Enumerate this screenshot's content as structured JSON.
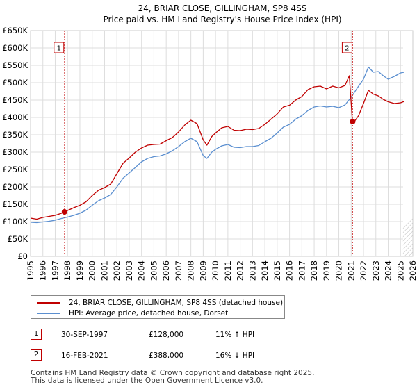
{
  "chart_data": {
    "type": "line",
    "title": "24, BRIAR CLOSE, GILLINGHAM, SP8 4SS",
    "subtitle": "Price paid vs. HM Land Registry's House Price Index (HPI)",
    "xlim": [
      1995,
      2026
    ],
    "ylim": [
      0,
      650000
    ],
    "x_ticks": [
      "1995",
      "1996",
      "1997",
      "1998",
      "1999",
      "2000",
      "2001",
      "2002",
      "2003",
      "2004",
      "2005",
      "2006",
      "2007",
      "2008",
      "2009",
      "2010",
      "2011",
      "2012",
      "2013",
      "2014",
      "2015",
      "2016",
      "2017",
      "2018",
      "2019",
      "2020",
      "2021",
      "2022",
      "2023",
      "2024",
      "2025",
      "2026"
    ],
    "y_ticks": [
      "£0",
      "£50K",
      "£100K",
      "£150K",
      "£200K",
      "£250K",
      "£300K",
      "£350K",
      "£400K",
      "£450K",
      "£500K",
      "£550K",
      "£600K",
      "£650K"
    ],
    "y_tick_values": [
      0,
      50000,
      100000,
      150000,
      200000,
      250000,
      300000,
      350000,
      400000,
      450000,
      500000,
      550000,
      600000,
      650000
    ],
    "series": [
      {
        "name": "24, BRIAR CLOSE, GILLINGHAM, SP8 4SS (detached house)",
        "color": "#c00000",
        "x": [
          1995.0,
          1995.5,
          1996.0,
          1996.5,
          1997.0,
          1997.5,
          1997.75,
          1998.0,
          1998.5,
          1999.0,
          1999.5,
          2000.0,
          2000.5,
          2001.0,
          2001.5,
          2002.0,
          2002.5,
          2003.0,
          2003.5,
          2004.0,
          2004.5,
          2005.0,
          2005.5,
          2006.0,
          2006.5,
          2007.0,
          2007.5,
          2008.0,
          2008.5,
          2009.0,
          2009.3,
          2009.7,
          2010.0,
          2010.5,
          2011.0,
          2011.5,
          2012.0,
          2012.5,
          2013.0,
          2013.5,
          2014.0,
          2014.5,
          2015.0,
          2015.5,
          2016.0,
          2016.5,
          2017.0,
          2017.5,
          2018.0,
          2018.5,
          2019.0,
          2019.5,
          2020.0,
          2020.5,
          2020.85,
          2021.08,
          2021.12,
          2021.3,
          2021.6,
          2022.0,
          2022.4,
          2022.8,
          2023.2,
          2023.6,
          2024.0,
          2024.5,
          2025.0,
          2025.3
        ],
        "values": [
          110000,
          107000,
          112000,
          115000,
          118000,
          124000,
          128000,
          132000,
          140000,
          147000,
          157000,
          175000,
          190000,
          198000,
          208000,
          238000,
          268000,
          283000,
          300000,
          312000,
          320000,
          322000,
          323000,
          333000,
          342000,
          358000,
          378000,
          392000,
          382000,
          335000,
          320000,
          345000,
          355000,
          370000,
          374000,
          363000,
          362000,
          366000,
          365000,
          368000,
          380000,
          395000,
          410000,
          430000,
          435000,
          450000,
          460000,
          480000,
          488000,
          490000,
          482000,
          490000,
          485000,
          492000,
          520000,
          400000,
          388000,
          390000,
          405000,
          440000,
          478000,
          467000,
          462000,
          452000,
          445000,
          440000,
          442000,
          446000
        ]
      },
      {
        "name": "HPI: Average price, detached house, Dorset",
        "color": "#5b8fd0",
        "x": [
          1995.0,
          1995.5,
          1996.0,
          1996.5,
          1997.0,
          1997.5,
          1998.0,
          1998.5,
          1999.0,
          1999.5,
          2000.0,
          2000.5,
          2001.0,
          2001.5,
          2002.0,
          2002.5,
          2003.0,
          2003.5,
          2004.0,
          2004.5,
          2005.0,
          2005.5,
          2006.0,
          2006.5,
          2007.0,
          2007.5,
          2008.0,
          2008.5,
          2009.0,
          2009.3,
          2009.7,
          2010.0,
          2010.5,
          2011.0,
          2011.5,
          2012.0,
          2012.5,
          2013.0,
          2013.5,
          2014.0,
          2014.5,
          2015.0,
          2015.5,
          2016.0,
          2016.5,
          2017.0,
          2017.5,
          2018.0,
          2018.5,
          2019.0,
          2019.5,
          2020.0,
          2020.5,
          2021.0,
          2021.5,
          2022.0,
          2022.4,
          2022.8,
          2023.2,
          2023.6,
          2024.0,
          2024.5,
          2025.0,
          2025.3
        ],
        "values": [
          98000,
          97000,
          99000,
          101000,
          104000,
          109000,
          113000,
          118000,
          124000,
          133000,
          147000,
          160000,
          168000,
          178000,
          200000,
          225000,
          240000,
          256000,
          272000,
          282000,
          287000,
          289000,
          295000,
          304000,
          316000,
          330000,
          340000,
          330000,
          290000,
          282000,
          300000,
          308000,
          318000,
          322000,
          314000,
          313000,
          316000,
          316000,
          319000,
          330000,
          340000,
          355000,
          372000,
          380000,
          395000,
          405000,
          420000,
          430000,
          433000,
          430000,
          432000,
          428000,
          436000,
          458000,
          485000,
          510000,
          545000,
          530000,
          532000,
          520000,
          510000,
          518000,
          528000,
          530000
        ]
      }
    ],
    "vlines": [
      1997.75,
      2021.12
    ],
    "markers": [
      {
        "label": "1",
        "x": 1997.75,
        "value": 128000
      },
      {
        "label": "2",
        "x": 2021.12,
        "value": 388000
      }
    ],
    "hatch_from": 2025.2
  },
  "legend": {
    "line1": "24, BRIAR CLOSE, GILLINGHAM, SP8 4SS (detached house)",
    "line2": "HPI: Average price, detached house, Dorset"
  },
  "transactions": [
    {
      "num": "1",
      "date": "30-SEP-1997",
      "price": "£128,000",
      "hpi": "11% ↑ HPI"
    },
    {
      "num": "2",
      "date": "16-FEB-2021",
      "price": "£388,000",
      "hpi": "16% ↓ HPI"
    }
  ],
  "footer": {
    "line1": "Contains HM Land Registry data © Crown copyright and database right 2025.",
    "line2": "This data is licensed under the Open Government Licence v3.0."
  },
  "colors": {
    "red": "#c00000",
    "blue": "#5b8fd0",
    "grid": "#dddddd"
  }
}
